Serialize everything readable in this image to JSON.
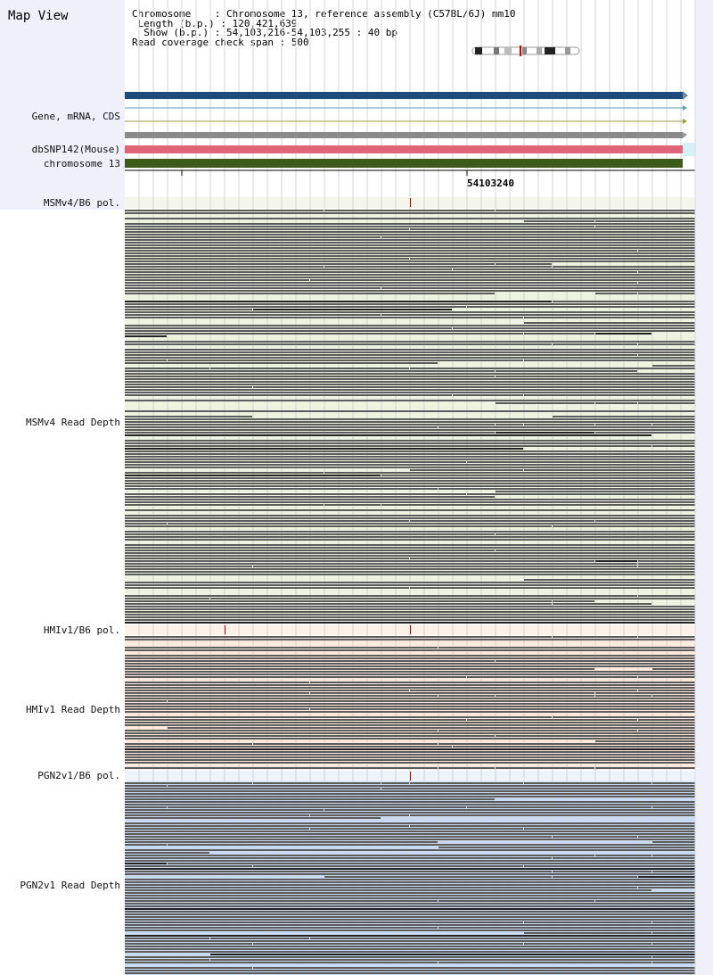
{
  "title": "Map View",
  "info": {
    "chromosome": "Chromosome    : Chromosome 13, reference assembly (C57BL/6J) mm10",
    "length": " Length (b.p.) : 120,421,639",
    "show": "  Show (b.p.) : 54,103,216-54,103,255 : 40 bp",
    "span": "Read coverage check span : 500"
  },
  "tracks": {
    "gene": "Gene, mRNA, CDS",
    "dbsnp": "dbSNP142(Mouse)",
    "chrom": "chromosome 13"
  },
  "ruler": {
    "position_label": "54103240"
  },
  "samples": [
    {
      "pol_label": "MSMv4/B6 pol.",
      "depth_label": "MSMv4 Read Depth",
      "color": "#eef2e0"
    },
    {
      "pol_label": "HMIv1/B6 pol.",
      "depth_label": "HMIv1 Read Depth",
      "color": "#fbeadd"
    },
    {
      "pol_label": "PGN2v1/B6 pol.",
      "depth_label": "PGN2v1 Read Depth",
      "color": "#c9daf0"
    }
  ],
  "colors": {
    "gene_bar": "#1f4a7c",
    "snp_bar": "#e06477",
    "chrom_bar": "#3e5a1a",
    "read": "#5c5c5c",
    "marker": "#cc0000"
  }
}
